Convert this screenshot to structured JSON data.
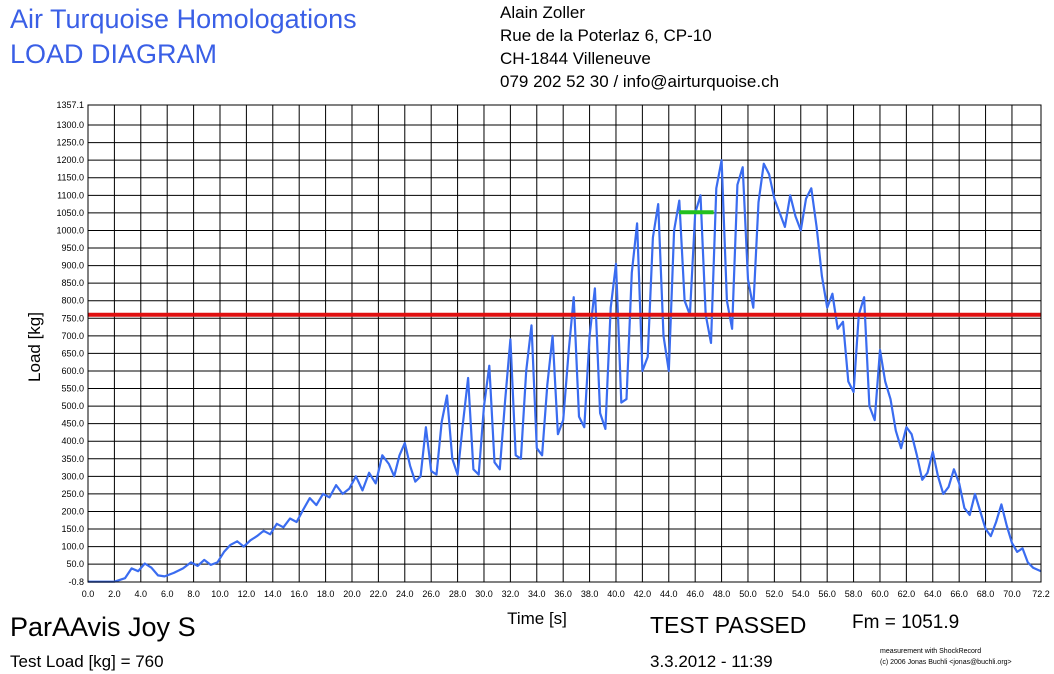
{
  "header": {
    "title_line1": "Air Turquoise Homologations",
    "title_line2": "LOAD DIAGRAM",
    "address": [
      "Alain Zoller",
      "Rue de la Poterlaz 6, CP-10",
      "CH-1844 Villeneuve",
      "079 202 52 30 / info@airturquoise.ch"
    ]
  },
  "footer": {
    "product": "ParAAvis Joy S",
    "test_load": "Test Load [kg] = 760",
    "status": "TEST PASSED",
    "fm": "Fm = 1051.9",
    "date": "3.3.2012 - 11:39",
    "credit_line1": "measurement with ShockRecord",
    "credit_line2": "(c) 2006 Jonas Buchli <jonas@buchli.org>"
  },
  "colors": {
    "title": "#3a5fe6",
    "series": "#3a6cf0",
    "test_load_line": "#e01010",
    "fm_marker": "#22c020",
    "grid": "#000000"
  },
  "chart_data": {
    "type": "line",
    "xlabel": "Time [s]",
    "ylabel": "Load [kg]",
    "xlim": [
      0,
      72.2
    ],
    "ylim": [
      -0.8,
      1357.1
    ],
    "x_ticks": [
      "0.0",
      "2.0",
      "4.0",
      "6.0",
      "8.0",
      "10.0",
      "12.0",
      "14.0",
      "16.0",
      "18.0",
      "20.0",
      "22.0",
      "24.0",
      "26.0",
      "28.0",
      "30.0",
      "32.0",
      "34.0",
      "36.0",
      "38.0",
      "40.0",
      "42.0",
      "44.0",
      "46.0",
      "48.0",
      "50.0",
      "52.0",
      "54.0",
      "56.0",
      "58.0",
      "60.0",
      "62.0",
      "64.0",
      "66.0",
      "68.0",
      "70.0",
      "72.2"
    ],
    "y_ticks": [
      "-0.8",
      "50.0",
      "100.0",
      "150.0",
      "200.0",
      "250.0",
      "300.0",
      "350.0",
      "400.0",
      "450.0",
      "500.0",
      "550.0",
      "600.0",
      "650.0",
      "700.0",
      "750.0",
      "800.0",
      "850.0",
      "900.0",
      "950.0",
      "1000.0",
      "1050.0",
      "1100.0",
      "1150.0",
      "1200.0",
      "1250.0",
      "1300.0",
      "1357.1"
    ],
    "grid": true,
    "test_load_kg": 760,
    "fm_kg": 1051.9,
    "fm_segment_x": [
      44.8,
      47.4
    ],
    "series": [
      {
        "points": [
          [
            0.0,
            0
          ],
          [
            2.0,
            0
          ],
          [
            2.8,
            10
          ],
          [
            3.3,
            38
          ],
          [
            3.8,
            30
          ],
          [
            4.3,
            52
          ],
          [
            4.8,
            40
          ],
          [
            5.3,
            18
          ],
          [
            5.8,
            15
          ],
          [
            6.5,
            25
          ],
          [
            7.2,
            38
          ],
          [
            7.8,
            55
          ],
          [
            8.3,
            45
          ],
          [
            8.8,
            62
          ],
          [
            9.3,
            48
          ],
          [
            9.8,
            55
          ],
          [
            10.3,
            85
          ],
          [
            10.8,
            105
          ],
          [
            11.3,
            115
          ],
          [
            11.8,
            100
          ],
          [
            12.3,
            118
          ],
          [
            12.8,
            130
          ],
          [
            13.3,
            145
          ],
          [
            13.8,
            135
          ],
          [
            14.3,
            165
          ],
          [
            14.8,
            155
          ],
          [
            15.3,
            180
          ],
          [
            15.8,
            170
          ],
          [
            16.3,
            205
          ],
          [
            16.8,
            238
          ],
          [
            17.3,
            218
          ],
          [
            17.8,
            250
          ],
          [
            18.3,
            240
          ],
          [
            18.8,
            275
          ],
          [
            19.3,
            250
          ],
          [
            19.8,
            265
          ],
          [
            20.3,
            300
          ],
          [
            20.8,
            260
          ],
          [
            21.3,
            310
          ],
          [
            21.8,
            280
          ],
          [
            22.3,
            360
          ],
          [
            22.8,
            335
          ],
          [
            23.2,
            300
          ],
          [
            23.6,
            360
          ],
          [
            24.0,
            395
          ],
          [
            24.4,
            330
          ],
          [
            24.8,
            285
          ],
          [
            25.2,
            300
          ],
          [
            25.6,
            440
          ],
          [
            26.0,
            315
          ],
          [
            26.4,
            305
          ],
          [
            26.8,
            455
          ],
          [
            27.2,
            530
          ],
          [
            27.6,
            350
          ],
          [
            28.0,
            305
          ],
          [
            28.4,
            450
          ],
          [
            28.8,
            580
          ],
          [
            29.2,
            320
          ],
          [
            29.6,
            305
          ],
          [
            30.0,
            500
          ],
          [
            30.4,
            615
          ],
          [
            30.8,
            340
          ],
          [
            31.2,
            320
          ],
          [
            31.6,
            515
          ],
          [
            32.0,
            690
          ],
          [
            32.4,
            360
          ],
          [
            32.8,
            350
          ],
          [
            33.2,
            600
          ],
          [
            33.6,
            730
          ],
          [
            34.0,
            380
          ],
          [
            34.4,
            360
          ],
          [
            34.8,
            560
          ],
          [
            35.2,
            700
          ],
          [
            35.6,
            420
          ],
          [
            36.0,
            460
          ],
          [
            36.4,
            650
          ],
          [
            36.8,
            810
          ],
          [
            37.2,
            470
          ],
          [
            37.6,
            440
          ],
          [
            38.0,
            700
          ],
          [
            38.4,
            835
          ],
          [
            38.8,
            480
          ],
          [
            39.2,
            435
          ],
          [
            39.6,
            780
          ],
          [
            40.0,
            905
          ],
          [
            40.4,
            510
          ],
          [
            40.8,
            520
          ],
          [
            41.2,
            880
          ],
          [
            41.6,
            1020
          ],
          [
            42.0,
            600
          ],
          [
            42.4,
            640
          ],
          [
            42.8,
            980
          ],
          [
            43.2,
            1075
          ],
          [
            43.6,
            700
          ],
          [
            44.0,
            600
          ],
          [
            44.4,
            1000
          ],
          [
            44.8,
            1085
          ],
          [
            45.2,
            800
          ],
          [
            45.6,
            760
          ],
          [
            46.0,
            1050
          ],
          [
            46.4,
            1100
          ],
          [
            46.8,
            760
          ],
          [
            47.2,
            680
          ],
          [
            47.6,
            1120
          ],
          [
            48.0,
            1200
          ],
          [
            48.4,
            800
          ],
          [
            48.8,
            720
          ],
          [
            49.2,
            1130
          ],
          [
            49.6,
            1180
          ],
          [
            50.0,
            860
          ],
          [
            50.4,
            780
          ],
          [
            50.8,
            1080
          ],
          [
            51.2,
            1190
          ],
          [
            51.6,
            1160
          ],
          [
            52.0,
            1090
          ],
          [
            52.4,
            1050
          ],
          [
            52.8,
            1010
          ],
          [
            53.2,
            1100
          ],
          [
            53.6,
            1040
          ],
          [
            54.0,
            1000
          ],
          [
            54.4,
            1090
          ],
          [
            54.8,
            1120
          ],
          [
            55.2,
            1010
          ],
          [
            55.6,
            870
          ],
          [
            56.0,
            780
          ],
          [
            56.4,
            820
          ],
          [
            56.8,
            720
          ],
          [
            57.2,
            740
          ],
          [
            57.6,
            570
          ],
          [
            58.0,
            540
          ],
          [
            58.4,
            760
          ],
          [
            58.8,
            810
          ],
          [
            59.2,
            500
          ],
          [
            59.6,
            460
          ],
          [
            60.0,
            660
          ],
          [
            60.4,
            570
          ],
          [
            60.8,
            520
          ],
          [
            61.2,
            430
          ],
          [
            61.6,
            380
          ],
          [
            62.0,
            440
          ],
          [
            62.4,
            420
          ],
          [
            62.8,
            360
          ],
          [
            63.2,
            290
          ],
          [
            63.6,
            310
          ],
          [
            64.0,
            370
          ],
          [
            64.4,
            300
          ],
          [
            64.8,
            250
          ],
          [
            65.2,
            270
          ],
          [
            65.6,
            320
          ],
          [
            66.0,
            280
          ],
          [
            66.4,
            210
          ],
          [
            66.8,
            190
          ],
          [
            67.2,
            250
          ],
          [
            67.6,
            200
          ],
          [
            68.0,
            150
          ],
          [
            68.4,
            130
          ],
          [
            68.8,
            170
          ],
          [
            69.2,
            220
          ],
          [
            69.6,
            160
          ],
          [
            70.0,
            110
          ],
          [
            70.4,
            85
          ],
          [
            70.8,
            95
          ],
          [
            71.2,
            55
          ],
          [
            71.6,
            40
          ],
          [
            72.2,
            30
          ]
        ]
      }
    ]
  }
}
